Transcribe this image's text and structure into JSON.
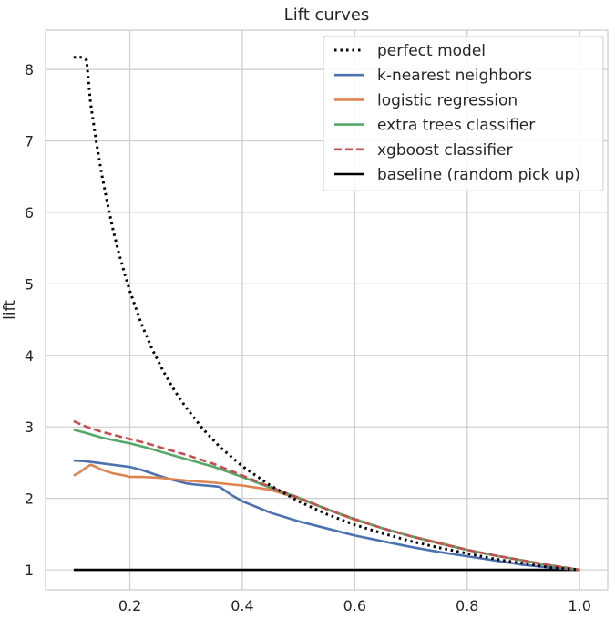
{
  "chart_data": {
    "type": "line",
    "title": "Lift curves",
    "xlabel": "",
    "ylabel": "lift",
    "xlim": [
      0.05,
      1.05
    ],
    "ylim": [
      0.72,
      8.55
    ],
    "xticks": [
      0.2,
      0.4,
      0.6,
      0.8,
      1.0
    ],
    "xtick_labels": [
      "0.2",
      "0.4",
      "0.6",
      "0.8",
      "1.0"
    ],
    "yticks": [
      1,
      2,
      3,
      4,
      5,
      6,
      7,
      8
    ],
    "ytick_labels": [
      "1",
      "2",
      "3",
      "4",
      "5",
      "6",
      "7",
      "8"
    ],
    "grid": true,
    "legend_position": "top-right",
    "series": [
      {
        "name": "perfect model",
        "color": "#000000",
        "style": "dotted",
        "x": [
          0.1,
          0.115,
          0.123,
          0.13,
          0.14,
          0.15,
          0.16,
          0.17,
          0.18,
          0.19,
          0.2,
          0.22,
          0.24,
          0.26,
          0.28,
          0.3,
          0.33,
          0.36,
          0.4,
          0.45,
          0.5,
          0.55,
          0.6,
          0.65,
          0.7,
          0.75,
          0.8,
          0.85,
          0.9,
          0.95,
          1.0
        ],
        "y": [
          8.17,
          8.17,
          8.13,
          7.53,
          7.0,
          6.53,
          6.13,
          5.76,
          5.44,
          5.16,
          4.9,
          4.45,
          4.08,
          3.77,
          3.5,
          3.27,
          2.97,
          2.72,
          2.45,
          2.18,
          1.96,
          1.78,
          1.63,
          1.51,
          1.4,
          1.31,
          1.23,
          1.15,
          1.09,
          1.03,
          1.0
        ]
      },
      {
        "name": "k-nearest neighbors",
        "color": "#4c72b0",
        "style": "solid",
        "x": [
          0.1,
          0.12,
          0.15,
          0.18,
          0.2,
          0.22,
          0.25,
          0.28,
          0.3,
          0.32,
          0.35,
          0.36,
          0.38,
          0.4,
          0.45,
          0.5,
          0.55,
          0.6,
          0.65,
          0.7,
          0.75,
          0.8,
          0.85,
          0.9,
          0.95,
          1.0
        ],
        "y": [
          2.53,
          2.52,
          2.49,
          2.46,
          2.44,
          2.4,
          2.32,
          2.25,
          2.21,
          2.19,
          2.17,
          2.16,
          2.05,
          1.96,
          1.8,
          1.68,
          1.58,
          1.48,
          1.4,
          1.32,
          1.25,
          1.19,
          1.13,
          1.07,
          1.03,
          1.0
        ]
      },
      {
        "name": "logistic regression",
        "color": "#dd8452",
        "style": "solid",
        "x": [
          0.1,
          0.11,
          0.12,
          0.13,
          0.14,
          0.15,
          0.17,
          0.19,
          0.2,
          0.22,
          0.25,
          0.3,
          0.35,
          0.4,
          0.45,
          0.5,
          0.55,
          0.6,
          0.65,
          0.7,
          0.75,
          0.8,
          0.85,
          0.9,
          0.95,
          1.0
        ],
        "y": [
          2.32,
          2.36,
          2.42,
          2.47,
          2.44,
          2.4,
          2.35,
          2.32,
          2.3,
          2.3,
          2.29,
          2.25,
          2.22,
          2.18,
          2.12,
          2.0,
          1.85,
          1.7,
          1.58,
          1.47,
          1.38,
          1.28,
          1.2,
          1.13,
          1.06,
          1.0
        ]
      },
      {
        "name": "extra trees classifier",
        "color": "#55a868",
        "style": "solid",
        "x": [
          0.1,
          0.12,
          0.15,
          0.18,
          0.2,
          0.23,
          0.26,
          0.3,
          0.35,
          0.4,
          0.45,
          0.5,
          0.55,
          0.6,
          0.65,
          0.7,
          0.75,
          0.8,
          0.85,
          0.9,
          0.95,
          1.0
        ],
        "y": [
          2.96,
          2.92,
          2.85,
          2.8,
          2.77,
          2.71,
          2.64,
          2.55,
          2.44,
          2.3,
          2.15,
          2.01,
          1.85,
          1.71,
          1.58,
          1.47,
          1.37,
          1.28,
          1.2,
          1.13,
          1.06,
          1.0
        ]
      },
      {
        "name": "xgboost classifier",
        "color": "#c44e52",
        "style": "dashed",
        "x": [
          0.1,
          0.12,
          0.15,
          0.18,
          0.2,
          0.23,
          0.26,
          0.3,
          0.35,
          0.4,
          0.45,
          0.5,
          0.55,
          0.6,
          0.65,
          0.7,
          0.75,
          0.8,
          0.85,
          0.9,
          0.95,
          1.0
        ],
        "y": [
          3.08,
          3.01,
          2.93,
          2.87,
          2.83,
          2.77,
          2.7,
          2.61,
          2.48,
          2.32,
          2.16,
          2.01,
          1.85,
          1.71,
          1.58,
          1.47,
          1.37,
          1.28,
          1.2,
          1.13,
          1.06,
          1.0
        ]
      },
      {
        "name": "baseline (random pick up)",
        "color": "#000000",
        "style": "solid",
        "x": [
          0.1,
          1.0
        ],
        "y": [
          1.0,
          1.0
        ]
      }
    ]
  }
}
